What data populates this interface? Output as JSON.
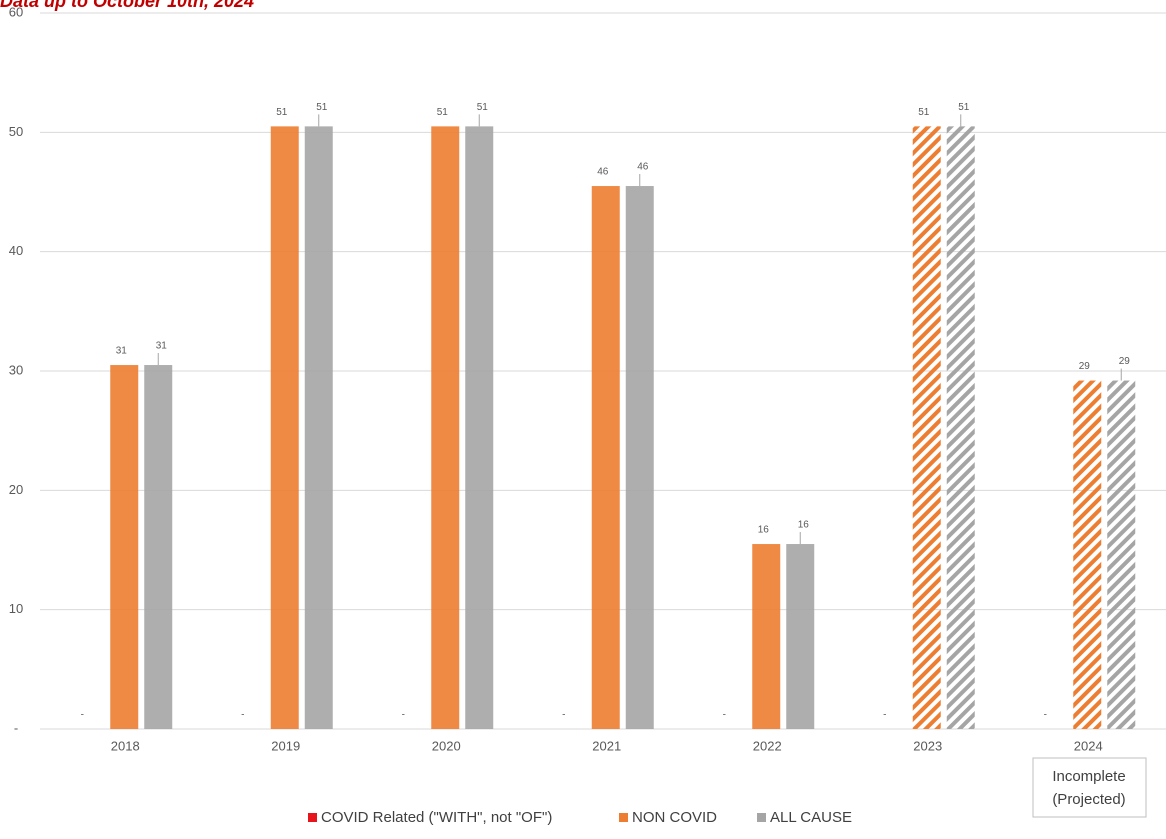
{
  "chart_data": {
    "type": "bar",
    "title": "Data up to October 10th, 2024",
    "categories": [
      "2018",
      "2019",
      "2020",
      "2021",
      "2022",
      "2023",
      "2024"
    ],
    "projected": [
      false,
      false,
      false,
      false,
      false,
      true,
      true
    ],
    "series": [
      {
        "name": "COVID Related (\"WITH\", not \"OF\")",
        "color": "#e8141b",
        "values": [
          0,
          0,
          0,
          0,
          0,
          0,
          0
        ],
        "value_labels": [
          "-",
          "-",
          "-",
          "-",
          "-",
          "-",
          "-"
        ]
      },
      {
        "name": "NON COVID",
        "color": "#ed7d31",
        "values": [
          30.5,
          50.5,
          50.5,
          45.5,
          15.5,
          50.5,
          29.2
        ],
        "value_labels": [
          "31",
          "51",
          "51",
          "46",
          "16",
          "51",
          "29"
        ]
      },
      {
        "name": "ALL CAUSE",
        "color": "#a5a5a5",
        "values": [
          30.5,
          50.5,
          50.5,
          45.5,
          15.5,
          50.5,
          29.2
        ],
        "value_labels": [
          "31",
          "51",
          "51",
          "46",
          "16",
          "51",
          "29"
        ]
      }
    ],
    "ylim": [
      0,
      60
    ],
    "yticks": [
      {
        "value": 0,
        "label": "-"
      },
      10,
      20,
      30,
      40,
      50,
      60
    ],
    "grid": true,
    "legend": "bottom",
    "annotation": [
      "Incomplete",
      "(Projected)"
    ]
  }
}
